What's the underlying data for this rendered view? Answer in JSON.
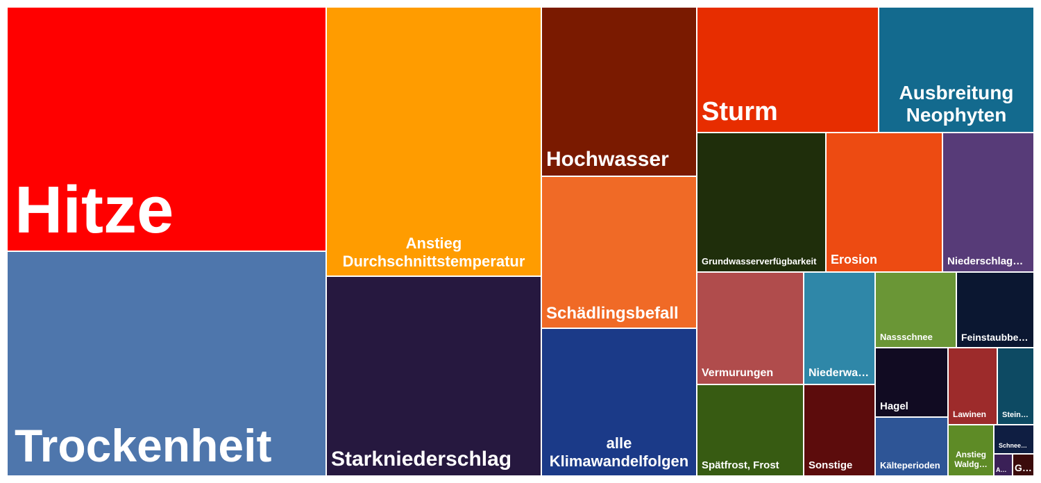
{
  "chart_data": {
    "type": "treemap",
    "items": [
      {
        "name": "Hitze",
        "color": "#ff0000"
      },
      {
        "name": "Trockenheit",
        "color": "#4e76ac"
      },
      {
        "name": "Anstieg Durchschnittstemperatur",
        "color": "#ff9c00"
      },
      {
        "name": "Starkniederschlag",
        "color": "#26183f"
      },
      {
        "name": "Hochwasser",
        "color": "#7a1a00"
      },
      {
        "name": "Schädlingsbefall",
        "color": "#f06a26"
      },
      {
        "name": "alle Klimawandelfolgen",
        "color": "#1b3a88"
      },
      {
        "name": "Sturm",
        "color": "#e72d00"
      },
      {
        "name": "Ausbreitung Neophyten",
        "color": "#136a8e"
      },
      {
        "name": "Grundwasserverfügbarkeit",
        "color": "#1f2e0b"
      },
      {
        "name": "Erosion",
        "color": "#ed4b12"
      },
      {
        "name": "Niederschlag…",
        "color": "#573b78"
      },
      {
        "name": "Vermurungen",
        "color": "#b04c4c"
      },
      {
        "name": "Niederwa…",
        "color": "#2f87a8"
      },
      {
        "name": "Nassschnee",
        "color": "#6a9636"
      },
      {
        "name": "Feinstaubbe…",
        "color": "#0b1731"
      },
      {
        "name": "Spätfrost, Frost",
        "color": "#375b12"
      },
      {
        "name": "Sonstige",
        "color": "#5c0c0c"
      },
      {
        "name": "Hagel",
        "color": "#110b22"
      },
      {
        "name": "Lawinen",
        "color": "#9d2b2b"
      },
      {
        "name": "Stein…",
        "color": "#0d4a63"
      },
      {
        "name": "Kälteperioden",
        "color": "#2e5596"
      },
      {
        "name": "Anstieg Waldg…",
        "color": "#5e8b26"
      },
      {
        "name": "Schneesi…",
        "color": "#0f1e42"
      },
      {
        "name": "A…",
        "color": "#3a2057"
      },
      {
        "name": "G…",
        "color": "#3b0b0b"
      }
    ]
  }
}
